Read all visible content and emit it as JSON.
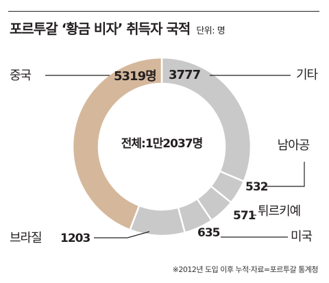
{
  "title": "포르투갈 ‘황금 비자’ 취득자 국적",
  "unit": "단위: 명",
  "source": "※2012년 도입 이후 누적·자료=포르투갈 통계청",
  "chart_data": {
    "type": "pie",
    "donut": true,
    "center_label": "전체:1만2037명",
    "unit": "명",
    "total": 12037,
    "slices": [
      {
        "name": "기타",
        "value": 3777,
        "color": "#c9c9c9",
        "value_label": "3777"
      },
      {
        "name": "남아공",
        "value": 532,
        "color": "#c9c9c9",
        "value_label": "532"
      },
      {
        "name": "튀르키예",
        "value": 571,
        "color": "#c9c9c9",
        "value_label": "571"
      },
      {
        "name": "미국",
        "value": 635,
        "color": "#c9c9c9",
        "value_label": "635"
      },
      {
        "name": "브라질",
        "value": 1203,
        "color": "#c9c9c9",
        "value_label": "1203"
      },
      {
        "name": "중국",
        "value": 5319,
        "color": "#d5b89c",
        "value_label": "5319명"
      }
    ]
  }
}
